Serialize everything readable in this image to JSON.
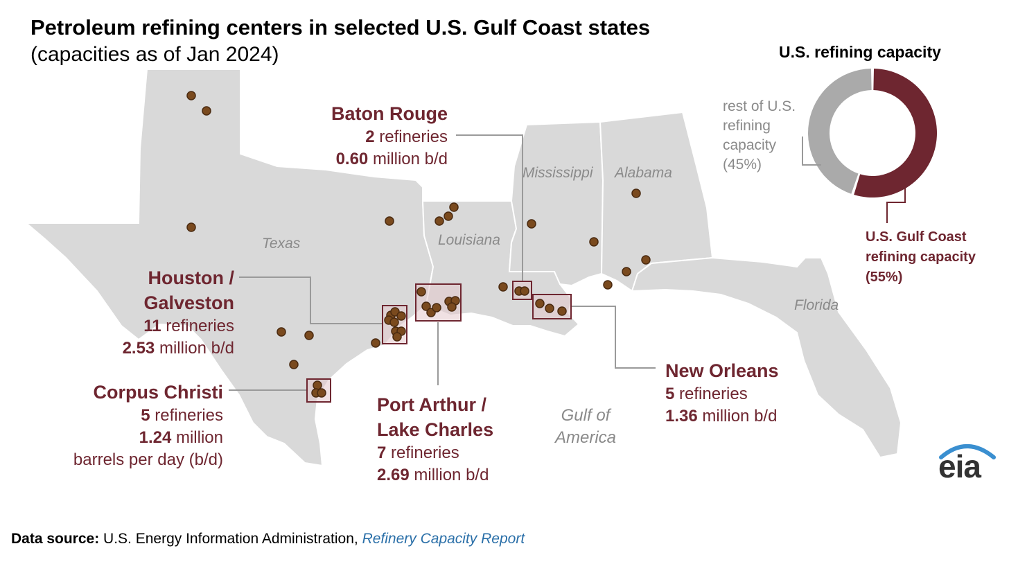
{
  "header": {
    "title": "Petroleum refining centers in selected U.S. Gulf Coast states",
    "subtitle": "(capacities as of Jan 2024)"
  },
  "states": {
    "texas": "Texas",
    "louisiana": "Louisiana",
    "mississippi": "Mississippi",
    "alabama": "Alabama",
    "florida": "Florida"
  },
  "water": {
    "line1": "Gulf of",
    "line2": "America"
  },
  "centers": {
    "baton_rouge": {
      "name": "Baton Rouge",
      "count": "2",
      "count_suffix": " refineries",
      "capacity": "0.60",
      "capacity_suffix": " million b/d"
    },
    "houston": {
      "name_line1": "Houston /",
      "name_line2": "Galveston",
      "count": "11",
      "count_suffix": " refineries",
      "capacity": "2.53",
      "capacity_suffix": " million b/d"
    },
    "corpus_christi": {
      "name": "Corpus Christi",
      "count": "5",
      "count_suffix": " refineries",
      "capacity": "1.24",
      "capacity_suffix": " million",
      "capacity_line2": "barrels per day (b/d)"
    },
    "port_arthur": {
      "name_line1": "Port Arthur /",
      "name_line2": "Lake Charles",
      "count": "7",
      "count_suffix": " refineries",
      "capacity": "2.69",
      "capacity_suffix": " million b/d"
    },
    "new_orleans": {
      "name": "New Orleans",
      "count": "5",
      "count_suffix": " refineries",
      "capacity": "1.36",
      "capacity_suffix": " million b/d"
    }
  },
  "donut": {
    "title": "U.S. refining capacity",
    "rest": {
      "line1": "rest of U.S.",
      "line2": "refining",
      "line3": "capacity",
      "line4": "(45%)",
      "share": 45,
      "color": "#aaaaaa"
    },
    "gulf": {
      "line1": "U.S. Gulf Coast",
      "line2": "refining capacity",
      "line3": "(55%)",
      "share": 55,
      "color": "#6e2630"
    }
  },
  "source": {
    "label": "Data source:",
    "text": " U.S. Energy Information Administration, ",
    "link": "Refinery Capacity Report"
  },
  "logo": {
    "text": "eia"
  },
  "colors": {
    "accent": "#6e2630",
    "land": "#d9d9d9",
    "dot": "#7a4a1e",
    "leader": "#9a9a9a"
  }
}
